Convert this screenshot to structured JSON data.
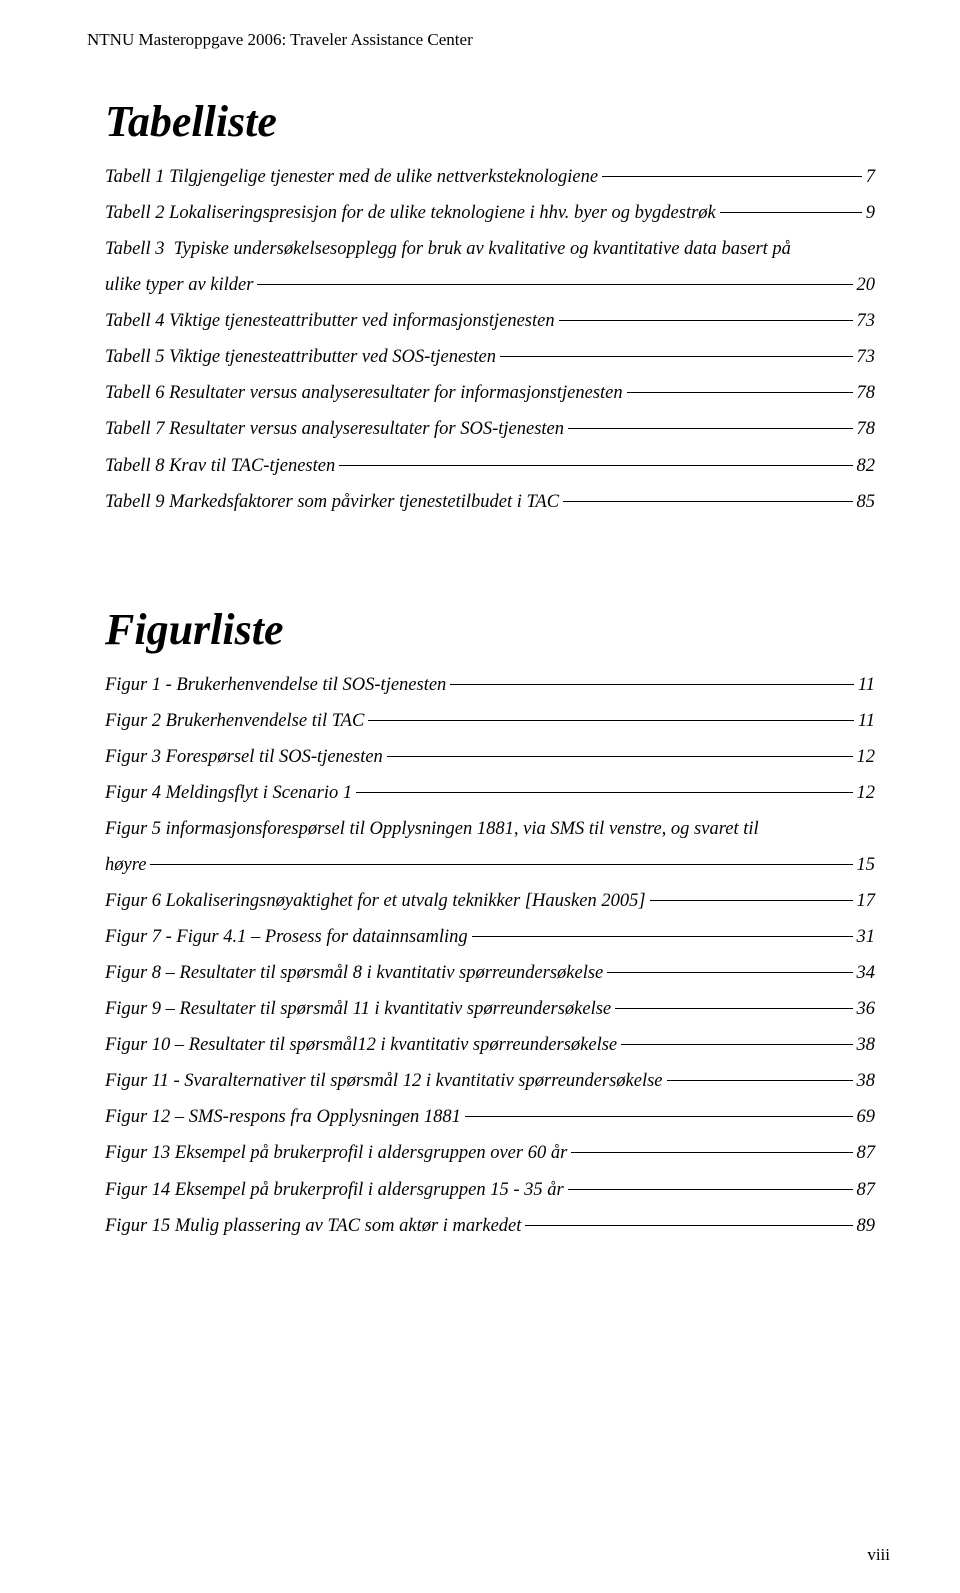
{
  "header": "NTNU Masteroppgave 2006: Traveler Assistance Center",
  "page_number": "viii",
  "sections": [
    {
      "title": "Tabelliste",
      "entries": [
        {
          "label": "Tabell 1 Tilgjengelige tjenester med de ulike nettverksteknologiene",
          "page": "7"
        },
        {
          "label": "Tabell 2 Lokaliseringspresisjon for de ulike teknologiene i hhv. byer og bygdestrøk",
          "page": "9"
        },
        {
          "label": "Tabell 3  Typiske undersøkelsesopplegg for bruk av kvalitative og kvantitative data basert på ulike typer av kilder",
          "page": "20"
        },
        {
          "label": "Tabell 4 Viktige tjenesteattributter ved informasjonstjenesten",
          "page": "73"
        },
        {
          "label": "Tabell 5 Viktige tjenesteattributter ved SOS-tjenesten",
          "page": "73"
        },
        {
          "label": "Tabell 6 Resultater versus analyseresultater for informasjonstjenesten",
          "page": "78"
        },
        {
          "label": "Tabell 7 Resultater versus analyseresultater for SOS-tjenesten",
          "page": "78"
        },
        {
          "label": "Tabell 8 Krav til TAC-tjenesten",
          "page": "82"
        },
        {
          "label": "Tabell 9 Markedsfaktorer som påvirker tjenestetilbudet i TAC",
          "page": "85"
        }
      ]
    },
    {
      "title": "Figurliste",
      "entries": [
        {
          "label": "Figur 1 - Brukerhenvendelse til SOS-tjenesten",
          "page": "11"
        },
        {
          "label": "Figur 2 Brukerhenvendelse til TAC",
          "page": "11"
        },
        {
          "label": "Figur 3 Forespørsel til SOS-tjenesten",
          "page": "12"
        },
        {
          "label": "Figur 4 Meldingsflyt i Scenario 1",
          "page": "12"
        },
        {
          "label": "Figur 5 informasjonsforespørsel til Opplysningen 1881, via SMS til venstre, og svaret til høyre",
          "page": "15"
        },
        {
          "label": "Figur 6  Lokaliseringsnøyaktighet for et utvalg teknikker [Hausken 2005]",
          "page": "17"
        },
        {
          "label": "Figur 7 - Figur 4.1 – Prosess for datainnsamling",
          "page": "31"
        },
        {
          "label": "Figur 8 – Resultater til spørsmål 8 i kvantitativ spørreundersøkelse",
          "page": "34"
        },
        {
          "label": "Figur 9 – Resultater til spørsmål 11 i kvantitativ spørreundersøkelse",
          "page": "36"
        },
        {
          "label": "Figur 10 – Resultater til spørsmål12 i kvantitativ spørreundersøkelse",
          "page": "38"
        },
        {
          "label": "Figur 11 - Svaralternativer til spørsmål 12  i kvantitativ spørreundersøkelse",
          "page": "38"
        },
        {
          "label": "Figur 12 – SMS-respons fra Opplysningen 1881",
          "page": "69"
        },
        {
          "label": "Figur 13 Eksempel på brukerprofil i aldersgruppen over 60 år",
          "page": "87"
        },
        {
          "label": "Figur 14 Eksempel på brukerprofil i aldersgruppen 15 - 35 år",
          "page": "87"
        },
        {
          "label": "Figur 15 Mulig plassering av TAC som aktør i markedet",
          "page": "89"
        }
      ]
    }
  ]
}
